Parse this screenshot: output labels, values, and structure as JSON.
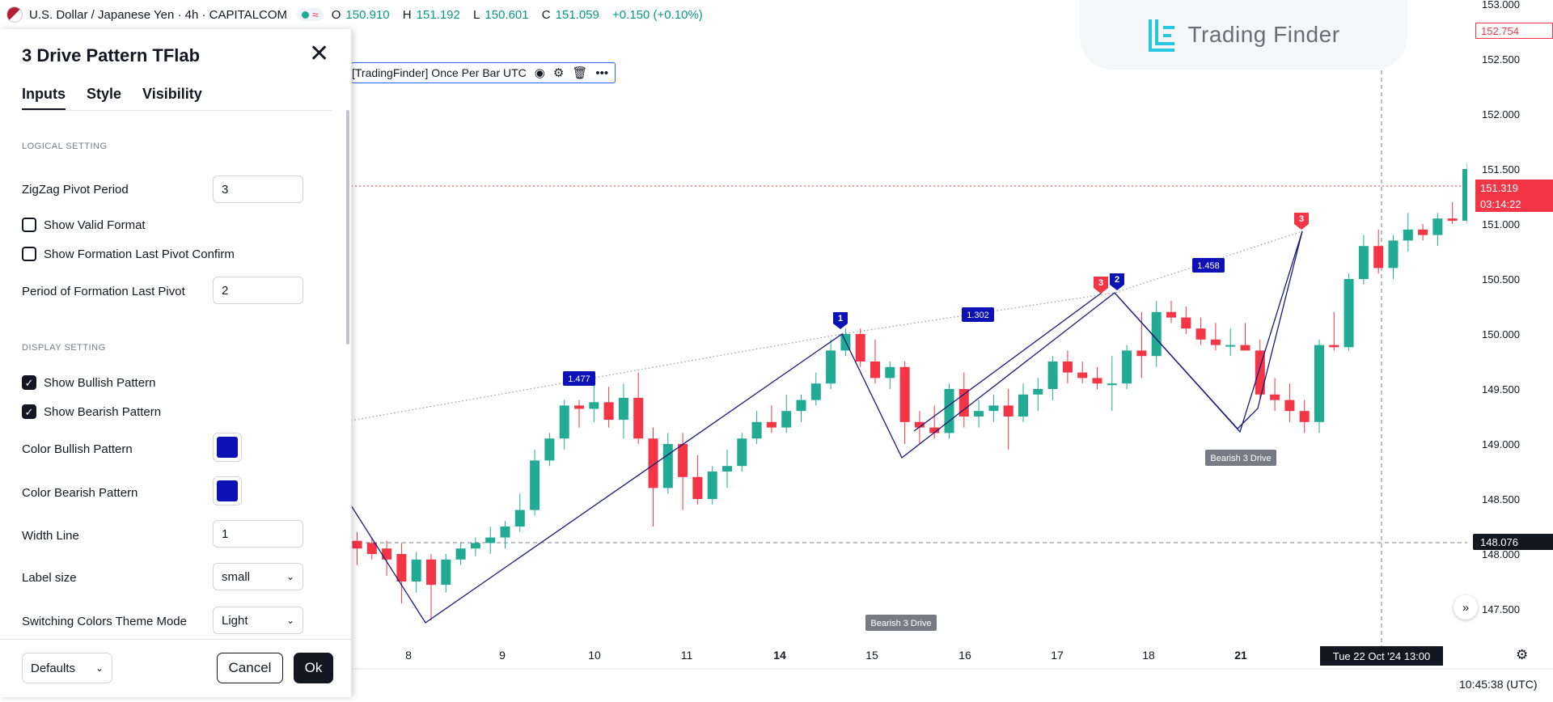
{
  "header": {
    "symbol": "U.S. Dollar / Japanese Yen · 4h · CAPITALCOM",
    "ohlc": [
      {
        "k": "O",
        "v": "150.910"
      },
      {
        "k": "H",
        "v": "151.192"
      },
      {
        "k": "L",
        "v": "150.601"
      },
      {
        "k": "C",
        "v": "151.059"
      }
    ],
    "change": "+0.150 (+0.10%)"
  },
  "indicator": {
    "label": "[TradingFinder] Once Per Bar UTC"
  },
  "logo": {
    "text": "Trading Finder"
  },
  "panel": {
    "title": "3 Drive Pattern TFlab",
    "tabs": [
      "Inputs",
      "Style",
      "Visibility"
    ],
    "sections": {
      "logical": "LOGICAL SETTING",
      "display": "DISPLAY SETTING"
    },
    "fields": {
      "zigzag_label": "ZigZag Pivot Period",
      "zigzag_value": "3",
      "show_valid_label": "Show Valid Format",
      "show_formation_label": "Show Formation Last Pivot Confirm",
      "period_label": "Period of Formation Last Pivot",
      "period_value": "2",
      "show_bullish_label": "Show Bullish Pattern",
      "show_bearish_label": "Show Bearish Pattern",
      "color_bullish_label": "Color Bullish Pattern",
      "color_bearish_label": "Color Bearish Pattern",
      "width_label": "Width Line",
      "width_value": "1",
      "label_size_label": "Label size",
      "label_size_value": "small",
      "theme_label": "Switching Colors Theme Mode",
      "theme_value": "Light"
    },
    "checkbox_states": {
      "show_valid": false,
      "show_formation": false,
      "show_bullish": true,
      "show_bearish": true
    },
    "colors": {
      "bullish": "#0c12b5",
      "bearish": "#0c12b5"
    },
    "buttons": {
      "defaults": "Defaults",
      "cancel": "Cancel",
      "ok": "Ok"
    }
  },
  "price_axis": {
    "ticks": [
      "153.000",
      "152.500",
      "152.000",
      "151.500",
      "151.000",
      "150.500",
      "150.000",
      "149.500",
      "149.000",
      "148.500",
      "148.000",
      "147.500"
    ],
    "current_price": "152.754",
    "line_price": "151.319",
    "countdown": "03:14:22",
    "crosshair_price": "148.076"
  },
  "time_axis": {
    "labels": [
      {
        "t": "8",
        "bold": false
      },
      {
        "t": "9",
        "bold": false
      },
      {
        "t": "10",
        "bold": false
      },
      {
        "t": "11",
        "bold": false
      },
      {
        "t": "14",
        "bold": true
      },
      {
        "t": "15",
        "bold": false
      },
      {
        "t": "16",
        "bold": false
      },
      {
        "t": "17",
        "bold": false
      },
      {
        "t": "18",
        "bold": false
      },
      {
        "t": "21",
        "bold": true
      }
    ],
    "crosshair_time": "Tue 22 Oct '24   13:00",
    "clock": "10:45:38 (UTC)"
  },
  "annotations": {
    "ratios": [
      "1.477",
      "1.302",
      "1.458"
    ],
    "pivot_labels": [
      "1",
      "2",
      "3",
      "3"
    ],
    "pattern_labels": [
      "Bearish 3 Drive",
      "Bearish 3 Drive"
    ]
  },
  "chart_colors": {
    "up": "#22ab94",
    "down": "#f23645",
    "pattern_line": "#1a1a7a",
    "label_bg": "#0c12b5"
  }
}
